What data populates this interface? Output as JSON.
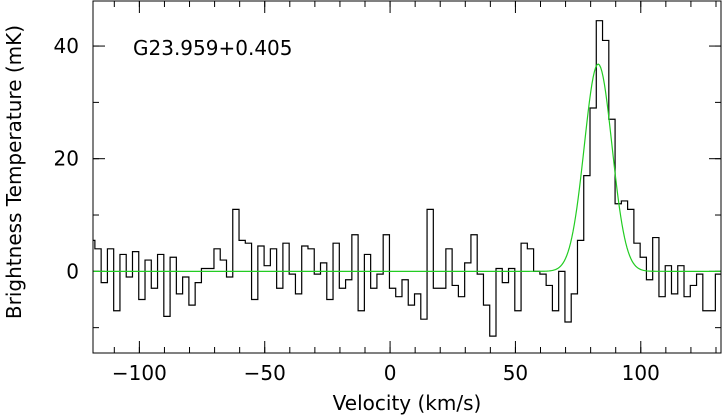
{
  "chart_data": {
    "type": "line",
    "annotation": "G23.959+0.405",
    "xlabel": "Velocity (km/s)",
    "ylabel": "Brightness Temperature (mK)",
    "xlim": [
      -118.5,
      132
    ],
    "ylim": [
      -14.5,
      48
    ],
    "x_ticks": [
      -100,
      -50,
      0,
      50,
      100
    ],
    "y_ticks": [
      0,
      20,
      40
    ],
    "x_minor_step": 10,
    "y_minor_step": 10,
    "grid": false,
    "series": [
      {
        "style": "step",
        "color": "#000000",
        "x": [
          -119.0,
          -116.5,
          -114.0,
          -111.5,
          -109.0,
          -106.5,
          -104.0,
          -101.5,
          -99.0,
          -96.5,
          -94.0,
          -91.5,
          -89.0,
          -86.5,
          -84.0,
          -81.5,
          -79.0,
          -76.5,
          -74.0,
          -71.5,
          -69.0,
          -66.5,
          -64.0,
          -61.5,
          -59.0,
          -56.5,
          -54.0,
          -51.5,
          -49.0,
          -46.5,
          -44.0,
          -41.5,
          -39.0,
          -36.5,
          -34.0,
          -31.5,
          -29.0,
          -26.5,
          -24.0,
          -21.5,
          -19.0,
          -16.5,
          -14.0,
          -11.5,
          -9.0,
          -6.5,
          -4.0,
          -1.5,
          1.0,
          3.5,
          6.0,
          8.5,
          11.0,
          13.5,
          16.0,
          18.5,
          21.0,
          23.5,
          26.0,
          28.5,
          31.0,
          33.5,
          36.0,
          38.5,
          41.0,
          43.5,
          46.0,
          48.5,
          51.0,
          53.5,
          56.0,
          58.5,
          61.0,
          63.5,
          66.0,
          68.5,
          71.0,
          73.5,
          76.0,
          78.5,
          81.0,
          83.5,
          86.0,
          88.5,
          91.0,
          93.5,
          96.0,
          98.5,
          101.0,
          103.5,
          106.0,
          108.5,
          111.0,
          113.5,
          116.0,
          118.5,
          121.0,
          123.5,
          126.0,
          128.5,
          131.0
        ],
        "values": [
          5.5,
          4.0,
          -2.0,
          4.0,
          -7.0,
          3.0,
          -1.0,
          3.5,
          -5.0,
          2.0,
          -3.0,
          3.0,
          -8.0,
          2.5,
          -4.0,
          -1.0,
          -6.0,
          -2.0,
          0.5,
          0.5,
          4.0,
          2.0,
          -1.0,
          11.0,
          5.5,
          5.0,
          -5.0,
          4.5,
          1.0,
          4.0,
          -3.0,
          5.0,
          -0.5,
          -4.0,
          4.5,
          4.0,
          -0.5,
          1.5,
          -5.0,
          5.0,
          -3.0,
          -1.5,
          6.5,
          -7.0,
          3.0,
          -3.0,
          -0.5,
          6.5,
          -3.0,
          -4.5,
          -1.5,
          -6.0,
          -4.0,
          -8.5,
          11.0,
          -3.0,
          -3.0,
          4.0,
          -2.5,
          -4.5,
          1.5,
          6.5,
          -0.5,
          -6.0,
          -11.5,
          0.5,
          -2.0,
          0.5,
          -7.0,
          5.0,
          4.0,
          0.0,
          -0.5,
          -2.5,
          -7.0,
          0.0,
          -9.0,
          -4.0,
          5.5,
          17.0,
          29.0,
          44.5,
          41.0,
          27.0,
          12.0,
          12.5,
          11.0,
          5.0,
          2.5,
          -1.5,
          6.0,
          -4.5,
          1.0,
          -4.0,
          1.0,
          -4.5,
          -2.5,
          -0.5,
          -7.0,
          -7.0,
          -0.5
        ]
      },
      {
        "style": "gaussian-fit",
        "color": "#22cc22",
        "amplitude": 36.8,
        "center": 83.0,
        "fwhm": 13.0,
        "baseline": 0
      }
    ]
  }
}
